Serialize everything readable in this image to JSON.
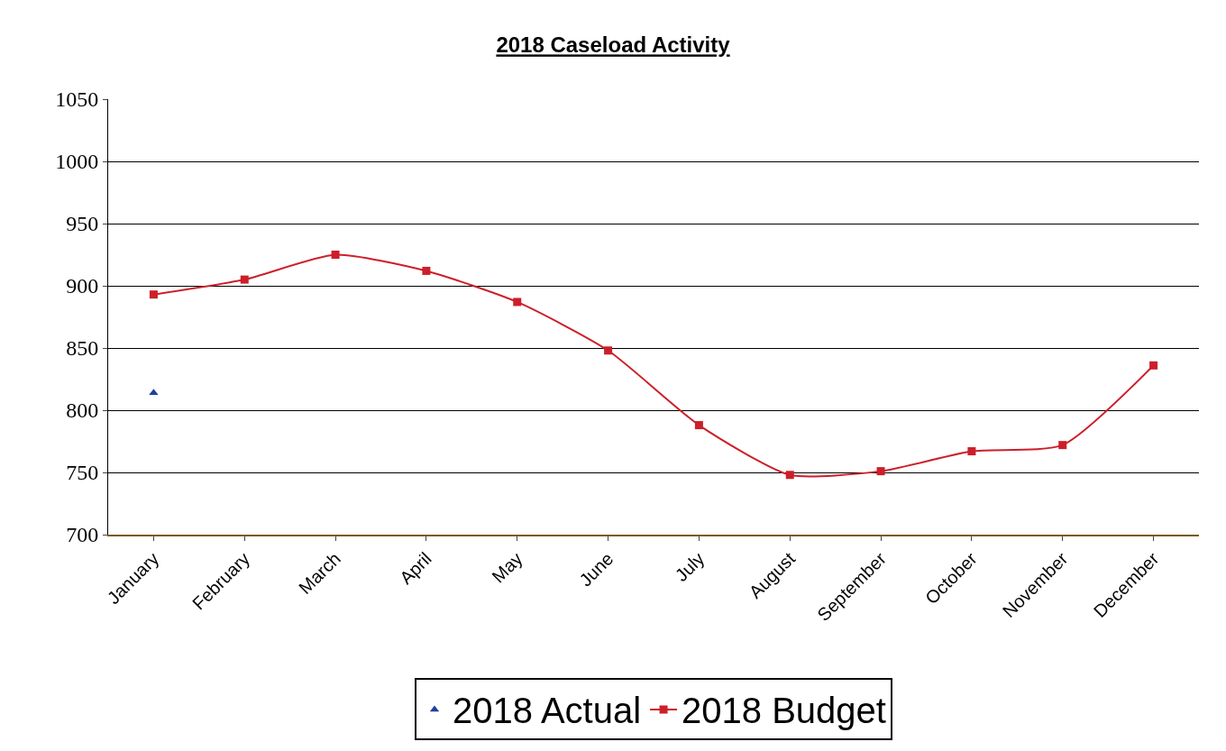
{
  "chart_data": {
    "type": "line",
    "title": "2018 Caseload Activity",
    "categories": [
      "January",
      "February",
      "March",
      "April",
      "May",
      "June",
      "July",
      "August",
      "September",
      "October",
      "November",
      "December"
    ],
    "series": [
      {
        "name": "2018 Actual",
        "color": "#1f3fa0",
        "marker": "triangle",
        "values": [
          814,
          null,
          null,
          null,
          null,
          null,
          null,
          null,
          null,
          null,
          null,
          null
        ]
      },
      {
        "name": "2018 Budget",
        "color": "#cc1f2a",
        "marker": "square",
        "values": [
          893,
          905,
          925,
          912,
          887,
          848,
          788,
          748,
          751,
          767,
          772,
          836
        ]
      }
    ],
    "ylim": [
      700,
      1050
    ],
    "yticks": [
      700,
      750,
      800,
      850,
      900,
      950,
      1000,
      1050
    ],
    "grid": "y",
    "legend": "bottom",
    "line_style": "solid"
  }
}
